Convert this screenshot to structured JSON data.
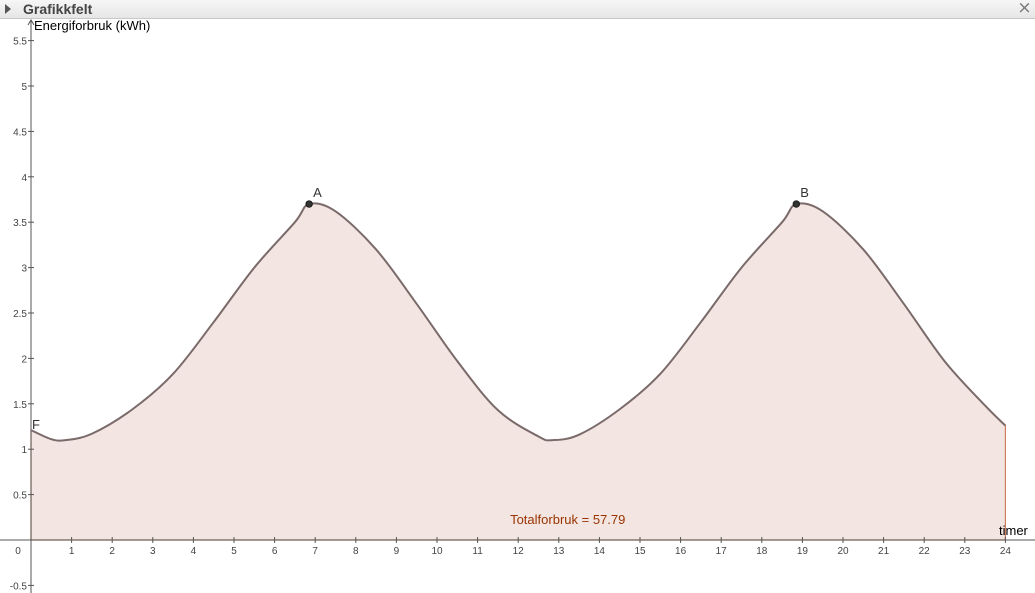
{
  "panel": {
    "title": "Grafikkfelt",
    "toggle_icon": "triangle-right-icon",
    "close_icon": "close-icon"
  },
  "chart_data": {
    "type": "area",
    "xlabel": "timer",
    "ylabel": "Energiforbruk (kWh)",
    "xlim": [
      0,
      24
    ],
    "ylim": [
      -0.5,
      5.5
    ],
    "x_ticks": [
      0,
      1,
      2,
      3,
      4,
      5,
      6,
      7,
      8,
      9,
      10,
      11,
      12,
      13,
      14,
      15,
      16,
      17,
      18,
      19,
      20,
      21,
      22,
      23,
      24
    ],
    "y_ticks": [
      -0.5,
      0.5,
      1,
      1.5,
      2,
      2.5,
      3,
      3.5,
      4,
      4.5,
      5,
      5.5
    ],
    "y_tick_labels": [
      "-0.5",
      "0.5",
      "1",
      "1.5",
      "2",
      "2.5",
      "3",
      "3.5",
      "4",
      "4.5",
      "5",
      "5.5"
    ],
    "grid": false,
    "function_name": "F",
    "curve": {
      "x": [
        0,
        0.5,
        0.85,
        1.5,
        2.5,
        3.5,
        4.5,
        5.5,
        6.5,
        6.85,
        7.5,
        8.5,
        9.5,
        10.5,
        11.5,
        12.5,
        12.85,
        13.5,
        14.5,
        15.5,
        16.5,
        17.5,
        18.5,
        18.85,
        19.5,
        20.5,
        21.5,
        22.5,
        23.5,
        24
      ],
      "y": [
        1.21,
        1.11,
        1.1,
        1.17,
        1.44,
        1.83,
        2.4,
        3.0,
        3.5,
        3.7,
        3.62,
        3.2,
        2.6,
        1.97,
        1.43,
        1.14,
        1.1,
        1.16,
        1.44,
        1.83,
        2.4,
        3.0,
        3.5,
        3.7,
        3.62,
        3.2,
        2.6,
        1.97,
        1.48,
        1.26
      ]
    },
    "points": [
      {
        "name": "A",
        "x": 6.85,
        "y": 3.7
      },
      {
        "name": "B",
        "x": 18.85,
        "y": 3.7
      }
    ],
    "annotation": "Totalforbruk = 57.79",
    "colors": {
      "curve": "#7a6a6a",
      "fill": "#f3e6e2",
      "fill_edge": "#cf7f5f",
      "annotation": "#993300",
      "axis": "#555555"
    }
  }
}
